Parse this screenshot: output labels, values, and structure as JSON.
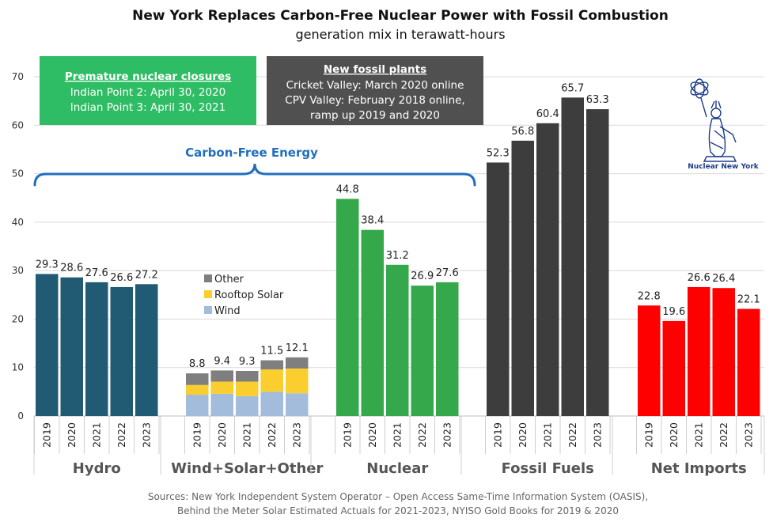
{
  "chart_data": {
    "type": "bar",
    "title": "New York Replaces Carbon-Free Nuclear Power with Fossil Combustion",
    "subtitle": "generation mix in terawatt-hours",
    "ylim": [
      0,
      70
    ],
    "yticks": [
      0,
      10,
      20,
      30,
      40,
      50,
      60,
      70
    ],
    "grid": true,
    "groups": [
      {
        "name": "Hydro",
        "color": "#215a73",
        "years": [
          "2019",
          "2020",
          "2021",
          "2022",
          "2023"
        ],
        "values": [
          29.3,
          28.6,
          27.6,
          26.6,
          27.2
        ],
        "labels": [
          "29.3",
          "28.6",
          "27.6",
          "26.6",
          "27.2"
        ]
      },
      {
        "name": "Wind+Solar+Other",
        "years": [
          "2019",
          "2020",
          "2021",
          "2022",
          "2023"
        ],
        "values": [
          8.8,
          9.4,
          9.3,
          11.5,
          12.1
        ],
        "labels": [
          "8.8",
          "9.4",
          "9.3",
          "11.5",
          "12.1"
        ],
        "stacked": [
          {
            "name": "Wind",
            "color": "#a3bcdc",
            "values": [
              4.4,
              4.6,
              4.1,
              5.0,
              4.7
            ]
          },
          {
            "name": "Rooftop Solar",
            "color": "#f9ce2e",
            "values": [
              2.0,
              2.5,
              3.0,
              4.6,
              5.1
            ]
          },
          {
            "name": "Other",
            "color": "#7f7f7f",
            "values": [
              2.4,
              2.3,
              2.2,
              1.9,
              2.3
            ]
          }
        ]
      },
      {
        "name": "Nuclear",
        "color": "#34a84a",
        "years": [
          "2019",
          "2020",
          "2021",
          "2022",
          "2023"
        ],
        "values": [
          44.8,
          38.4,
          31.2,
          26.9,
          27.6
        ],
        "labels": [
          "44.8",
          "38.4",
          "31.2",
          "26.9",
          "27.6"
        ]
      },
      {
        "name": "Fossil Fuels",
        "color": "#3d3d3d",
        "years": [
          "2019",
          "2020",
          "2021",
          "2022",
          "2023"
        ],
        "values": [
          52.3,
          56.8,
          60.4,
          65.7,
          63.3
        ],
        "labels": [
          "52.3",
          "56.8",
          "60.4",
          "65.7",
          "63.3"
        ]
      },
      {
        "name": "Net Imports",
        "color": "#ff0000",
        "years": [
          "2019",
          "2020",
          "2021",
          "2022",
          "2023"
        ],
        "values": [
          22.8,
          19.6,
          26.6,
          26.4,
          22.1
        ],
        "labels": [
          "22.8",
          "19.6",
          "26.6",
          "26.4",
          "22.1"
        ]
      }
    ],
    "legend": [
      "Other",
      "Rooftop Solar",
      "Wind"
    ],
    "annotations": {
      "closures_box": {
        "color": "#2ebd64",
        "heading": "Premature nuclear closures",
        "lines": [
          "Indian Point 2: April 30, 2020",
          "Indian Point 3: April 30, 2021"
        ]
      },
      "fossil_box": {
        "color": "#505050",
        "heading": "New fossil plants",
        "lines": [
          "Cricket Valley: March 2020 online",
          "CPV Valley: February 2018 online,",
          "ramp up 2019 and 2020"
        ]
      },
      "brace_label": "Carbon-Free Energy",
      "brace_color": "#1f6fbf"
    },
    "sources": [
      "Sources: New York Independent System Operator – Open Access Same-Time Information System (OASIS),",
      "Behind the Meter Solar Estimated Actuals for 2021-2023, NYISO Gold Books for 2019 & 2020"
    ]
  },
  "logo": {
    "text": "Nuclear New York",
    "icon": "statue-of-liberty-atom-icon",
    "color": "#1d3b8a"
  }
}
